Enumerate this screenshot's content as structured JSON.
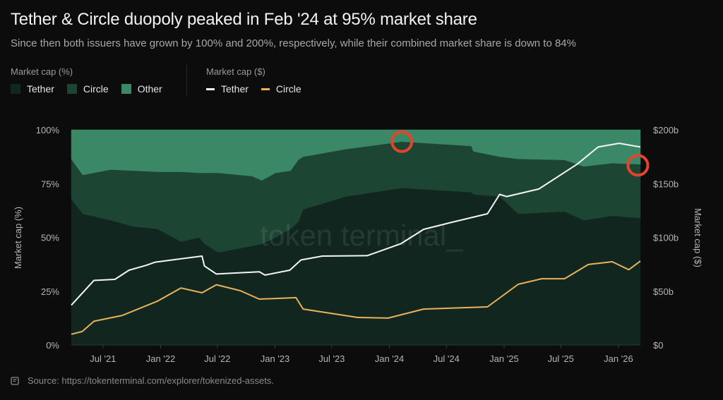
{
  "header": {
    "title": "Tether & Circle duopoly peaked in Feb '24 at 95% market share",
    "subtitle": "Since then both issuers have grown by 100% and 200%, respectively, while their combined market share is down to 84%"
  },
  "legend": {
    "share_title": "Market cap (%)",
    "share_items": [
      {
        "label": "Tether",
        "color": "#11261e"
      },
      {
        "label": "Circle",
        "color": "#1d4534"
      },
      {
        "label": "Other",
        "color": "#3b8867"
      }
    ],
    "usd_title": "Market cap ($)",
    "usd_items": [
      {
        "label": "Tether",
        "color": "#f5f5f5"
      },
      {
        "label": "Circle",
        "color": "#e8b35a"
      }
    ]
  },
  "watermark": "token terminal_",
  "source": {
    "icon": "document-icon",
    "text": "Source: https://tokenterminal.com/explorer/tokenized-assets."
  },
  "chart_data": {
    "type": "area+line",
    "title": "Tether & Circle duopoly peaked in Feb '24 at 95% market share",
    "x_range": [
      "2021-03-22",
      "2026-03-12"
    ],
    "x_ticks": [
      {
        "date": "2021-07-01",
        "label": "Jul '21"
      },
      {
        "date": "2022-01-01",
        "label": "Jan '22"
      },
      {
        "date": "2022-07-01",
        "label": "Jul '22"
      },
      {
        "date": "2023-01-01",
        "label": "Jan '23"
      },
      {
        "date": "2023-07-01",
        "label": "Jul '23"
      },
      {
        "date": "2024-01-01",
        "label": "Jan '24"
      },
      {
        "date": "2024-07-01",
        "label": "Jul '24"
      },
      {
        "date": "2025-01-01",
        "label": "Jan '25"
      },
      {
        "date": "2025-07-01",
        "label": "Jul '25"
      },
      {
        "date": "2026-01-01",
        "label": "Jan '26"
      }
    ],
    "y_left": {
      "label": "Market cap (%)",
      "range": [
        0,
        100
      ],
      "ticks": [
        {
          "v": 0,
          "label": "0%"
        },
        {
          "v": 25,
          "label": "25%"
        },
        {
          "v": 50,
          "label": "50%"
        },
        {
          "v": 75,
          "label": "75%"
        },
        {
          "v": 100,
          "label": "100%"
        }
      ]
    },
    "y_right": {
      "label": "Market cap ($)",
      "range": [
        0,
        200
      ],
      "ticks": [
        {
          "v": 0,
          "label": "$0"
        },
        {
          "v": 50,
          "label": "$50b"
        },
        {
          "v": 100,
          "label": "$100b"
        },
        {
          "v": 150,
          "label": "$150b"
        },
        {
          "v": 200,
          "label": "$200b"
        }
      ]
    },
    "grid": false,
    "share_dates": [
      "2021-03-22",
      "2021-04-27",
      "2021-07-25",
      "2021-10-08",
      "2021-12-21",
      "2022-03-07",
      "2022-05-04",
      "2022-05-21",
      "2022-07-04",
      "2022-10-19",
      "2022-11-20",
      "2023-01-03",
      "2023-02-20",
      "2023-03-16",
      "2023-04-01",
      "2023-08-15",
      "2024-02-10",
      "2024-09-19",
      "2024-09-25",
      "2024-12-18",
      "2025-02-15",
      "2025-07-13",
      "2025-09-12",
      "2025-12-12",
      "2026-03-12"
    ],
    "share_series": [
      {
        "name": "Tether",
        "axis": "left",
        "values": [
          68,
          61,
          58,
          55,
          54,
          48,
          50,
          47,
          43,
          46,
          47,
          50,
          54,
          57,
          63,
          69,
          73,
          71,
          70,
          69,
          61,
          62,
          58,
          60,
          59
        ]
      },
      {
        "name": "Circle",
        "axis": "left",
        "values": [
          18.5,
          18,
          23.5,
          26,
          26.5,
          32.5,
          30,
          33,
          37,
          32.5,
          29.5,
          30,
          27,
          29,
          24.5,
          22,
          21.5,
          21.5,
          20,
          18.5,
          25.5,
          24,
          25,
          24.5,
          25
        ]
      },
      {
        "name": "Other",
        "axis": "left",
        "values": [
          13.5,
          21,
          18.5,
          19,
          19.5,
          19.5,
          20,
          20,
          20,
          21.5,
          23.5,
          20,
          19,
          14,
          12.5,
          9,
          5.5,
          7.5,
          10,
          12.5,
          13.5,
          14,
          17,
          15.5,
          16
        ]
      }
    ],
    "usd_series": [
      {
        "name": "Tether",
        "axis": "right",
        "unit": "$b",
        "points": [
          [
            "2021-03-22",
            37
          ],
          [
            "2021-06-02",
            60
          ],
          [
            "2021-08-08",
            61
          ],
          [
            "2021-09-22",
            69.5
          ],
          [
            "2021-11-16",
            74
          ],
          [
            "2021-12-15",
            77
          ],
          [
            "2022-05-13",
            82.6
          ],
          [
            "2022-05-21",
            73.4
          ],
          [
            "2022-06-28",
            66
          ],
          [
            "2022-11-12",
            68
          ],
          [
            "2022-11-30",
            65
          ],
          [
            "2023-02-17",
            69.5
          ],
          [
            "2023-03-25",
            79
          ],
          [
            "2023-06-01",
            82.6
          ],
          [
            "2023-10-22",
            83
          ],
          [
            "2024-02-06",
            94
          ],
          [
            "2024-04-19",
            107.5
          ],
          [
            "2024-07-18",
            114
          ],
          [
            "2024-11-09",
            122
          ],
          [
            "2024-12-18",
            140
          ],
          [
            "2025-01-09",
            138
          ],
          [
            "2025-04-22",
            145
          ],
          [
            "2025-08-22",
            168
          ],
          [
            "2025-10-28",
            184
          ],
          [
            "2026-01-03",
            187.5
          ],
          [
            "2026-03-12",
            184
          ]
        ]
      },
      {
        "name": "Circle",
        "axis": "right",
        "unit": "$b",
        "points": [
          [
            "2021-03-22",
            10
          ],
          [
            "2021-04-26",
            12.5
          ],
          [
            "2021-06-02",
            22
          ],
          [
            "2021-09-01",
            27.5
          ],
          [
            "2021-12-21",
            40.6
          ],
          [
            "2022-03-07",
            53
          ],
          [
            "2022-05-13",
            48.5
          ],
          [
            "2022-06-28",
            56
          ],
          [
            "2022-09-12",
            50.5
          ],
          [
            "2022-11-12",
            42.6
          ],
          [
            "2023-03-09",
            44
          ],
          [
            "2023-04-01",
            33.4
          ],
          [
            "2023-09-22",
            25.6
          ],
          [
            "2023-12-28",
            25
          ],
          [
            "2024-04-19",
            33.4
          ],
          [
            "2024-11-09",
            35.4
          ],
          [
            "2025-02-15",
            56.4
          ],
          [
            "2025-05-01",
            61.6
          ],
          [
            "2025-07-13",
            61.6
          ],
          [
            "2025-09-27",
            74.8
          ],
          [
            "2025-12-12",
            77.4
          ],
          [
            "2026-02-03",
            70
          ],
          [
            "2026-03-12",
            78
          ]
        ]
      }
    ],
    "highlights": [
      {
        "date": "2024-02-10",
        "value": 94.5,
        "color": "#e2452c"
      },
      {
        "date": "2026-03-04",
        "value": 83.5,
        "color": "#e2452c"
      }
    ]
  }
}
